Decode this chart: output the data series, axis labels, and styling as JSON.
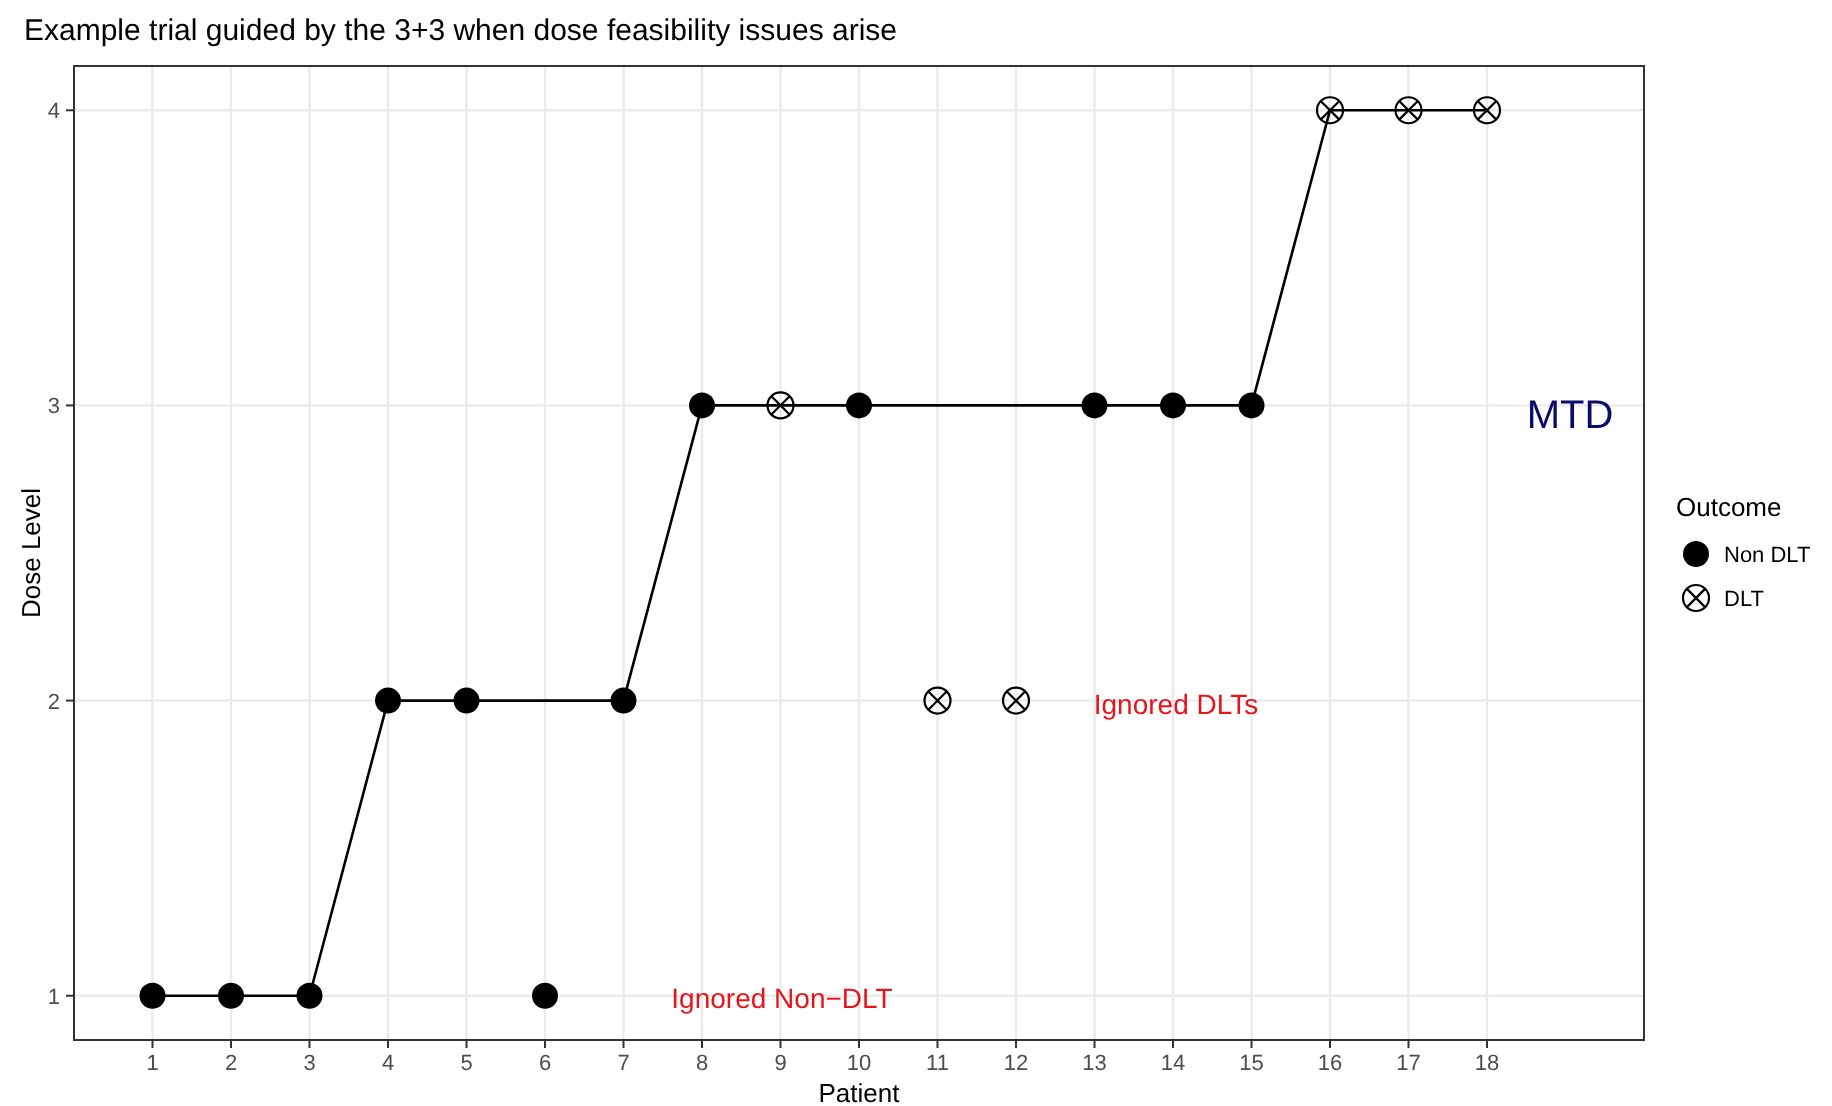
{
  "chart_data": {
    "type": "scatter",
    "title": "Example trial guided by the 3+3 when dose feasibility issues arise",
    "xlabel": "Patient",
    "ylabel": "Dose Level",
    "legend_title": "Outcome",
    "legend": "right",
    "grid": true,
    "xlim": [
      0,
      20
    ],
    "xticks": [
      1,
      2,
      3,
      4,
      5,
      6,
      7,
      8,
      9,
      10,
      11,
      12,
      13,
      14,
      15,
      16,
      17,
      18
    ],
    "ylim": [
      0.85,
      4.15
    ],
    "yticks": [
      1,
      2,
      3,
      4
    ],
    "series": [
      {
        "type": "line",
        "color": "#000000",
        "marker": "none",
        "line_style": "solid",
        "x": [
          1,
          2,
          3,
          4,
          5,
          7,
          8,
          9,
          10,
          13,
          14,
          15,
          16,
          17,
          18
        ],
        "values": [
          1,
          1,
          1,
          2,
          2,
          2,
          3,
          3,
          3,
          3,
          3,
          3,
          4,
          4,
          4
        ]
      },
      {
        "name": "Non DLT",
        "color": "#000000",
        "marker": "circle",
        "x": [
          1,
          2,
          3,
          4,
          5,
          6,
          7,
          8,
          10,
          13,
          14,
          15
        ],
        "values": [
          1,
          1,
          1,
          2,
          2,
          1,
          2,
          3,
          3,
          3,
          3,
          3
        ]
      },
      {
        "name": "DLT",
        "color": "#000000",
        "marker": "cross",
        "x": [
          9,
          11,
          12,
          16,
          17,
          18
        ],
        "values": [
          3,
          2,
          2,
          4,
          4,
          4
        ]
      }
    ],
    "annotations": [
      "MTD",
      "Ignored DLTs",
      "Ignored Non−DLT"
    ]
  }
}
